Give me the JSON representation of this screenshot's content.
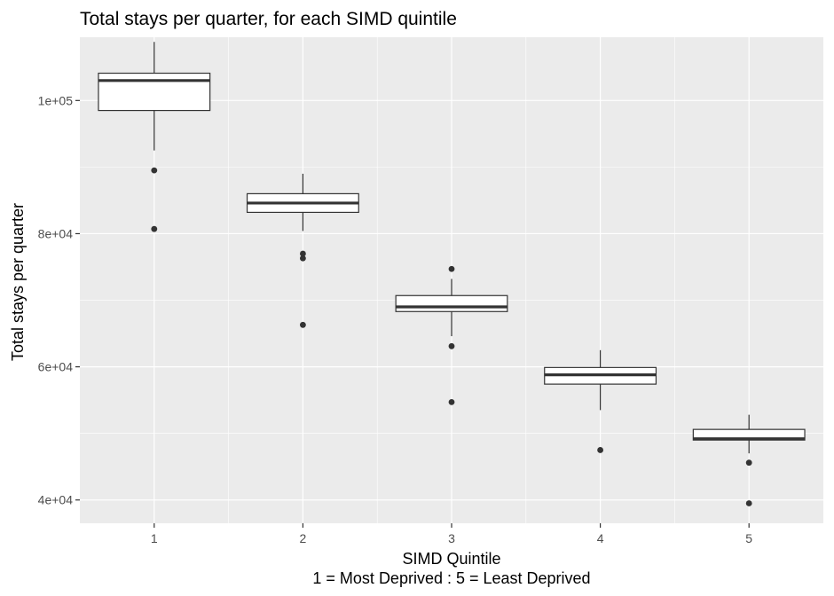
{
  "chart_data": {
    "type": "boxplot",
    "title": "Total stays per quarter, for each SIMD quintile",
    "xlabel": "SIMD Quintile",
    "xlabel_line2": "1 = Most Deprived : 5 = Least Deprived",
    "ylabel": "Total stays per quarter",
    "categories": [
      "1",
      "2",
      "3",
      "4",
      "5"
    ],
    "ylim": [
      36500,
      109500
    ],
    "y_ticks": [
      40000,
      60000,
      80000,
      100000
    ],
    "y_tick_labels": [
      "4e+04",
      "6e+04",
      "8e+04",
      "1e+05"
    ],
    "grid": true,
    "boxes": [
      {
        "category": "1",
        "whisker_low": 92500,
        "q1": 98500,
        "median": 103000,
        "q3": 104100,
        "whisker_high": 108800,
        "outliers": [
          89500,
          80700
        ]
      },
      {
        "category": "2",
        "whisker_low": 80400,
        "q1": 83200,
        "median": 84600,
        "q3": 86000,
        "whisker_high": 89000,
        "outliers": [
          77000,
          76300,
          66300
        ]
      },
      {
        "category": "3",
        "whisker_low": 64600,
        "q1": 68300,
        "median": 69000,
        "q3": 70700,
        "whisker_high": 73200,
        "outliers": [
          74700,
          63100,
          54700
        ]
      },
      {
        "category": "4",
        "whisker_low": 53500,
        "q1": 57400,
        "median": 58800,
        "q3": 59900,
        "whisker_high": 62500,
        "outliers": [
          47500
        ]
      },
      {
        "category": "5",
        "whisker_low": 47000,
        "q1": 49000,
        "median": 49200,
        "q3": 50600,
        "whisker_high": 52800,
        "outliers": [
          45600,
          39500
        ]
      }
    ],
    "colors": {
      "panel_background": "#ebebeb",
      "grid": "#ffffff",
      "box_fill": "#ffffff",
      "box_stroke": "#333333",
      "point": "#333333"
    }
  }
}
